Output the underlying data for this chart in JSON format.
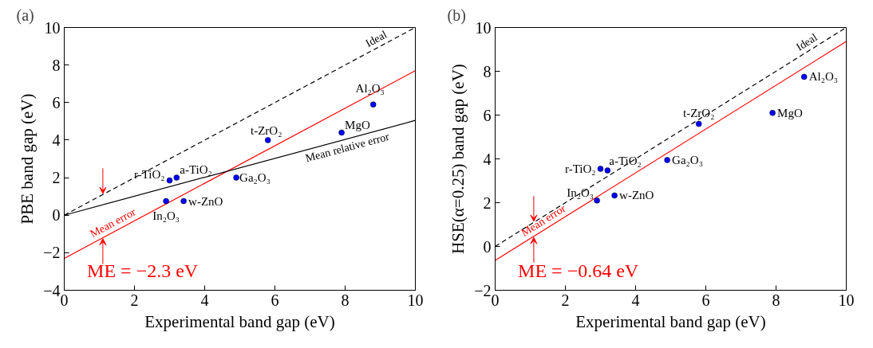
{
  "chart_data": [
    {
      "type": "scatter",
      "title": "(a)",
      "xlabel": "Experimental band gap (eV)",
      "ylabel": "PBE band gap (eV)",
      "xlim": [
        0,
        10
      ],
      "ylim": [
        -4,
        10
      ],
      "xticks": [
        0,
        2,
        4,
        6,
        8,
        10
      ],
      "yticks": [
        -4,
        -2,
        0,
        2,
        4,
        6,
        8,
        10
      ],
      "grid": false,
      "series": [
        {
          "name": "Ideal",
          "type": "line",
          "x": [
            0,
            10
          ],
          "values": [
            0,
            10
          ],
          "color": "#000000",
          "line_style": "dashed"
        },
        {
          "name": "Mean error",
          "type": "line",
          "x": [
            0,
            10
          ],
          "values": [
            -2.3,
            7.7
          ],
          "color": "#ff0000",
          "line_style": "solid"
        },
        {
          "name": "Mean relative error",
          "type": "line",
          "x": [
            0,
            10
          ],
          "values": [
            0,
            5.05
          ],
          "color": "#000000",
          "line_style": "solid"
        },
        {
          "x": [
            2.9,
            3.0,
            3.2,
            3.4,
            4.9,
            5.8,
            7.9,
            8.8
          ],
          "values": [
            0.75,
            1.85,
            2.0,
            0.75,
            2.0,
            4.0,
            4.4,
            5.9
          ],
          "color": "#0000ff",
          "marker": "circle"
        }
      ],
      "annotations": [
        {
          "text": "In₂O₃",
          "x": 2.9,
          "y": 0.75
        },
        {
          "text": "r-TiO₂",
          "x": 3.0,
          "y": 1.85
        },
        {
          "text": "a-TiO₂",
          "x": 3.2,
          "y": 2.0
        },
        {
          "text": "w-ZnO",
          "x": 3.4,
          "y": 0.75
        },
        {
          "text": "Ga₂O₃",
          "x": 4.9,
          "y": 2.0
        },
        {
          "text": "t-ZrO₂",
          "x": 5.8,
          "y": 4.0
        },
        {
          "text": "MgO",
          "x": 7.9,
          "y": 4.4
        },
        {
          "text": "Al₂O₃",
          "x": 8.8,
          "y": 5.9
        },
        "ME = −2.3 eV"
      ]
    },
    {
      "type": "scatter",
      "title": "(b)",
      "xlabel": "Experimental band gap (eV)",
      "ylabel": "HSE(α=0.25) band gap (eV)",
      "xlim": [
        0,
        10
      ],
      "ylim": [
        -2,
        10
      ],
      "xticks": [
        0,
        2,
        4,
        6,
        8,
        10
      ],
      "yticks": [
        -2,
        0,
        2,
        4,
        6,
        8,
        10
      ],
      "grid": false,
      "series": [
        {
          "name": "Ideal",
          "type": "line",
          "x": [
            0,
            10
          ],
          "values": [
            0,
            10
          ],
          "color": "#000000",
          "line_style": "dashed"
        },
        {
          "name": "Mean error",
          "type": "line",
          "x": [
            0,
            10
          ],
          "values": [
            -0.64,
            9.36
          ],
          "color": "#ff0000",
          "line_style": "solid"
        },
        {
          "x": [
            2.9,
            3.0,
            3.2,
            3.4,
            4.9,
            5.8,
            7.9,
            8.8
          ],
          "values": [
            2.1,
            3.55,
            3.47,
            2.33,
            3.95,
            5.6,
            6.1,
            7.75
          ],
          "color": "#0000ff",
          "marker": "circle"
        }
      ],
      "annotations": [
        {
          "text": "In₂O₃",
          "x": 2.9,
          "y": 2.1
        },
        {
          "text": "r-TiO₂",
          "x": 3.0,
          "y": 3.55
        },
        {
          "text": "a-TiO₂",
          "x": 3.2,
          "y": 3.47
        },
        {
          "text": "w-ZnO",
          "x": 3.4,
          "y": 2.33
        },
        {
          "text": "Ga₂O₃",
          "x": 4.9,
          "y": 3.95
        },
        {
          "text": "t-ZrO₂",
          "x": 5.8,
          "y": 5.6
        },
        {
          "text": "MgO",
          "x": 7.9,
          "y": 6.1
        },
        {
          "text": "Al₂O₃",
          "x": 8.8,
          "y": 7.75
        },
        "ME = −0.64 eV"
      ]
    }
  ]
}
